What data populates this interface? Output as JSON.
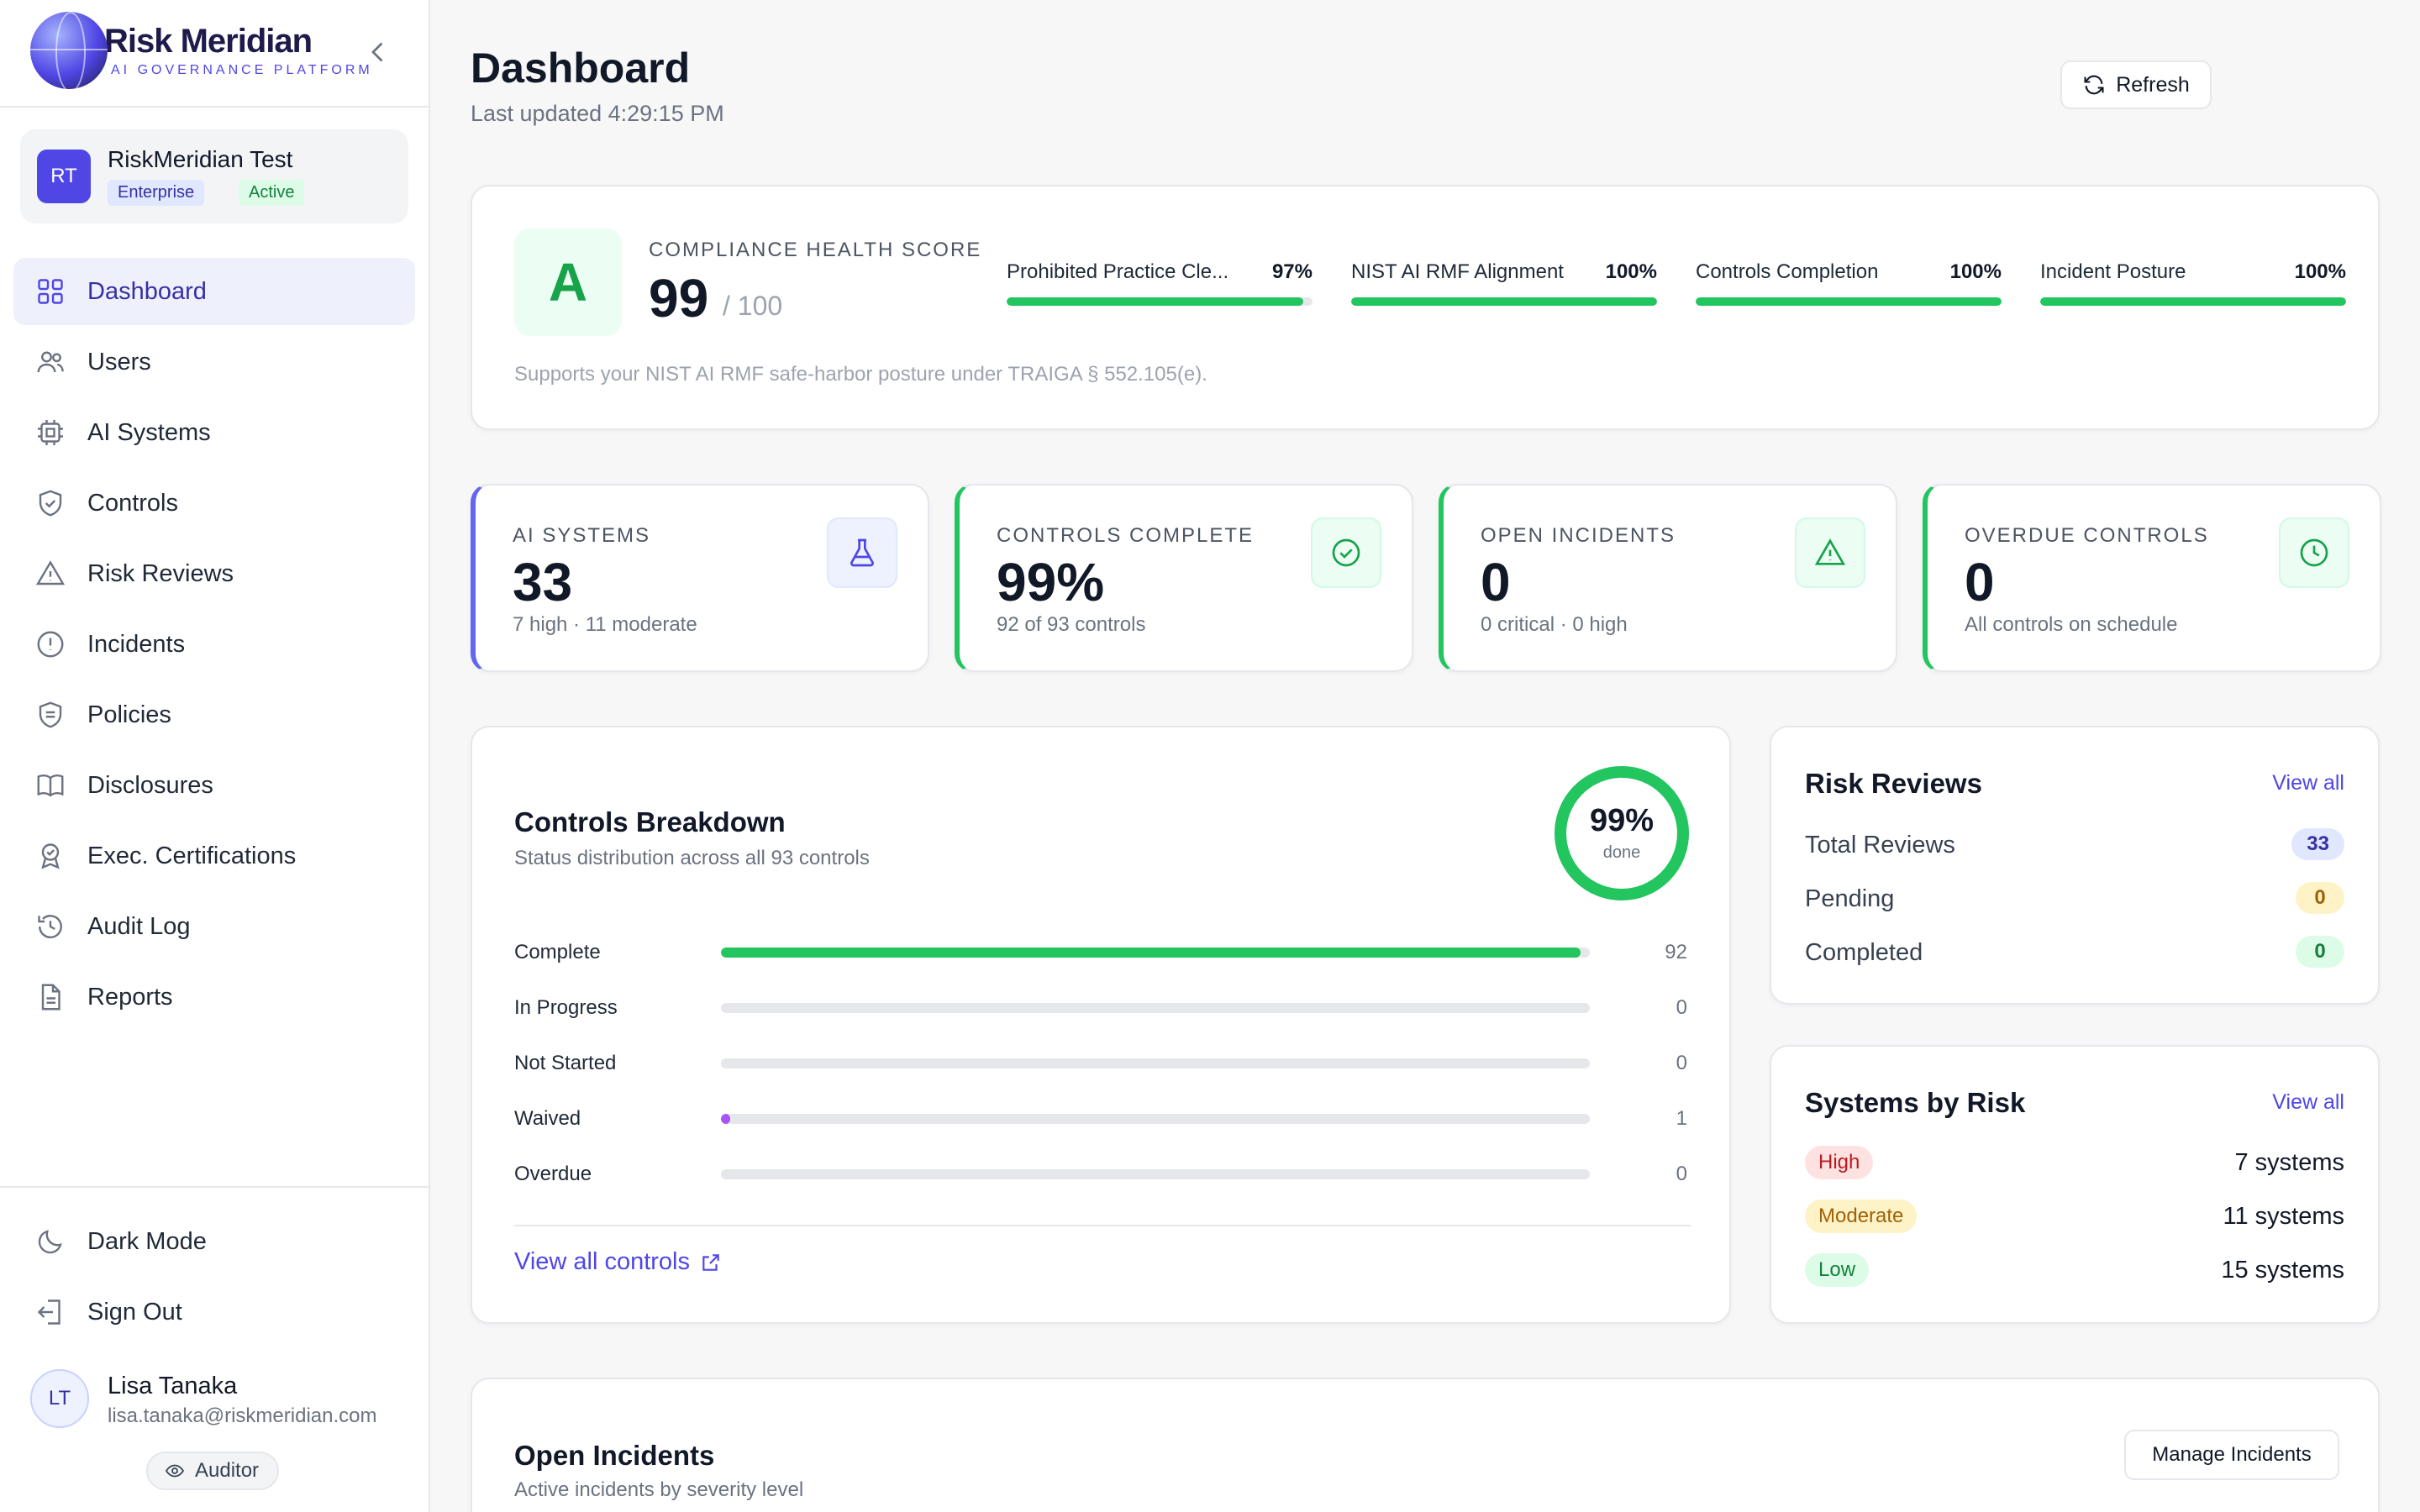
{
  "brand": {
    "name": "Risk Meridian",
    "tagline": "AI GOVERNANCE PLATFORM"
  },
  "org": {
    "initials": "RT",
    "name": "RiskMeridian Test",
    "plan": "Enterprise",
    "status": "Active"
  },
  "nav": [
    {
      "label": "Dashboard",
      "icon": "grid-icon",
      "active": true
    },
    {
      "label": "Users",
      "icon": "users-icon"
    },
    {
      "label": "AI Systems",
      "icon": "cpu-icon"
    },
    {
      "label": "Controls",
      "icon": "shield-check-icon"
    },
    {
      "label": "Risk Reviews",
      "icon": "warning-icon"
    },
    {
      "label": "Incidents",
      "icon": "alert-circle-icon"
    },
    {
      "label": "Policies",
      "icon": "shield-doc-icon"
    },
    {
      "label": "Disclosures",
      "icon": "book-icon"
    },
    {
      "label": "Exec. Certifications",
      "icon": "award-icon"
    },
    {
      "label": "Audit Log",
      "icon": "history-icon"
    },
    {
      "label": "Reports",
      "icon": "file-icon"
    }
  ],
  "footer": {
    "dark_mode": "Dark Mode",
    "sign_out": "Sign Out"
  },
  "user": {
    "initials": "LT",
    "name": "Lisa Tanaka",
    "email": "lisa.tanaka@riskmeridian.com",
    "role": "Auditor"
  },
  "header": {
    "title": "Dashboard",
    "updated": "Last updated 4:29:15 PM",
    "refresh": "Refresh"
  },
  "health": {
    "grade": "A",
    "label": "COMPLIANCE HEALTH SCORE",
    "score": "99",
    "out_of": "/ 100",
    "note": "Supports your NIST AI RMF safe-harbor posture under TRAIGA § 552.105(e).",
    "metrics": [
      {
        "label": "Prohibited Practice Cle...",
        "value": "97%",
        "fraction": 0.97
      },
      {
        "label": "NIST AI RMF Alignment",
        "value": "100%",
        "fraction": 1.0
      },
      {
        "label": "Controls Completion",
        "value": "100%",
        "fraction": 1.0
      },
      {
        "label": "Incident Posture",
        "value": "100%",
        "fraction": 1.0
      }
    ]
  },
  "stats": [
    {
      "label": "AI SYSTEMS",
      "value": "33",
      "sub": "7 high · 11 moderate",
      "icon": "flask-icon",
      "accent": "#6366f1"
    },
    {
      "label": "CONTROLS COMPLETE",
      "value": "99%",
      "sub": "92 of 93 controls",
      "icon": "check-circle-icon",
      "accent": "#22c55e"
    },
    {
      "label": "OPEN INCIDENTS",
      "value": "0",
      "sub": "0 critical · 0 high",
      "icon": "warning-icon",
      "accent": "#22c55e"
    },
    {
      "label": "OVERDUE CONTROLS",
      "value": "0",
      "sub": "All controls on schedule",
      "icon": "clock-icon",
      "accent": "#22c55e"
    }
  ],
  "breakdown": {
    "title": "Controls Breakdown",
    "subtitle": "Status distribution across all 93 controls",
    "donut_pct": "99%",
    "donut_fraction": 0.99,
    "donut_label": "done",
    "total": 93,
    "rows": [
      {
        "label": "Complete",
        "value": 92,
        "display": "92",
        "color": "#22c55e"
      },
      {
        "label": "In Progress",
        "value": 0,
        "display": "0",
        "color": "#3b82f6"
      },
      {
        "label": "Not Started",
        "value": 0,
        "display": "0",
        "color": "#9ca3af"
      },
      {
        "label": "Waived",
        "value": 1,
        "display": "1",
        "color": "#a855f7"
      },
      {
        "label": "Overdue",
        "value": 0,
        "display": "0",
        "color": "#ef4444"
      }
    ],
    "link": "View all controls"
  },
  "risk_reviews": {
    "title": "Risk Reviews",
    "view_all": "View all",
    "items": [
      {
        "label": "Total Reviews",
        "value": "33"
      },
      {
        "label": "Pending",
        "value": "0"
      },
      {
        "label": "Completed",
        "value": "0"
      }
    ]
  },
  "systems_by_risk": {
    "title": "Systems by Risk",
    "view_all": "View all",
    "items": [
      {
        "label": "High",
        "value": "7 systems"
      },
      {
        "label": "Moderate",
        "value": "11 systems"
      },
      {
        "label": "Low",
        "value": "15 systems"
      }
    ]
  },
  "open_incidents": {
    "title": "Open Incidents",
    "subtitle": "Active incidents by severity level",
    "button": "Manage Incidents"
  }
}
